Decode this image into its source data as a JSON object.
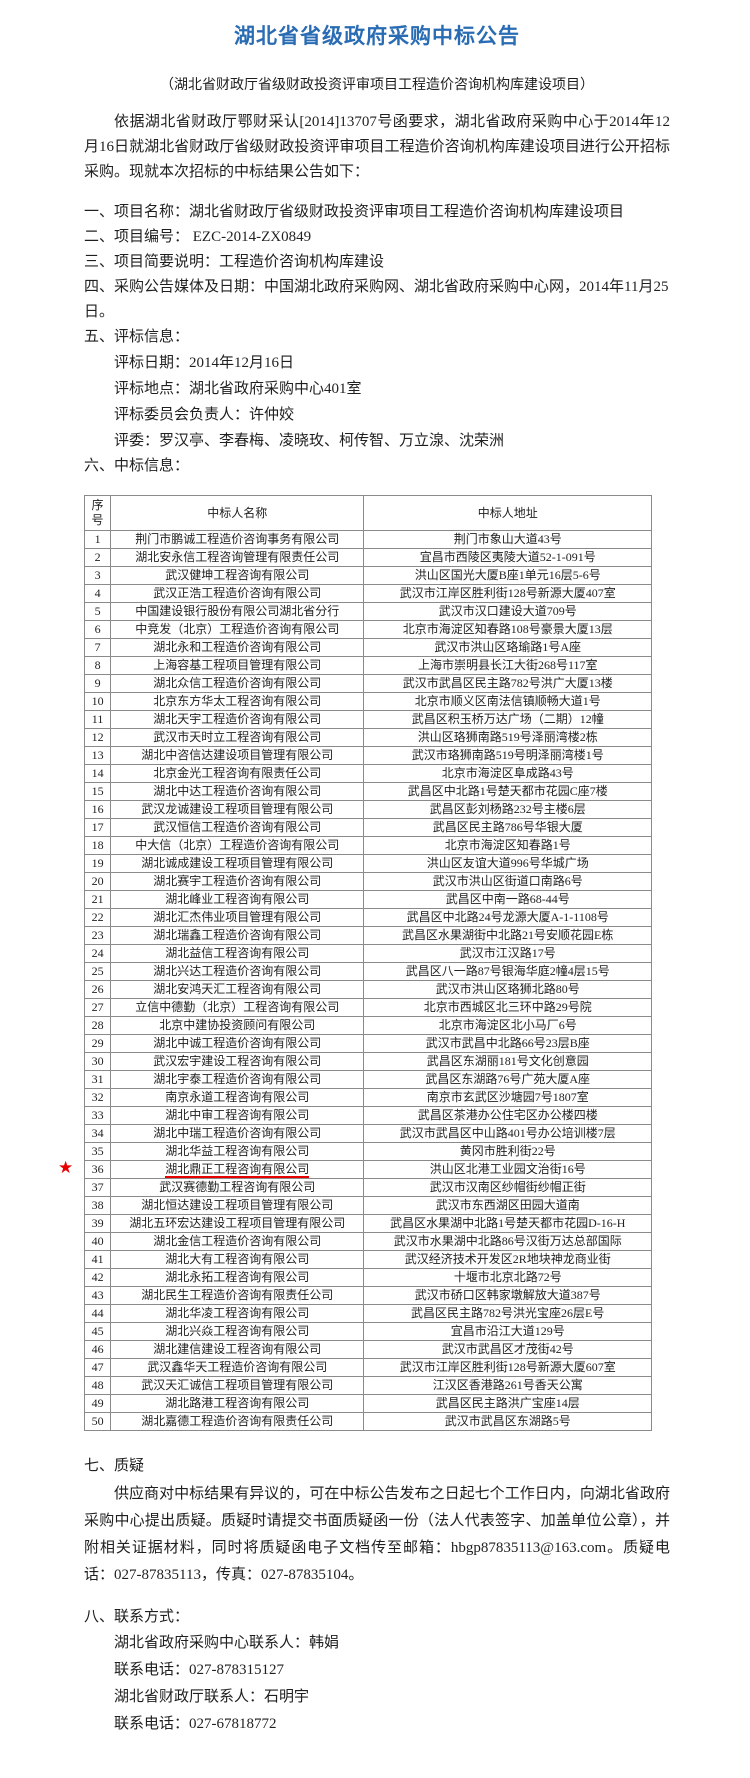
{
  "page": {
    "title": "湖北省省级政府采购中标公告",
    "subtitle": "（湖北省财政厅省级财政投资评审项目工程造价咨询机构库建设项目）",
    "intro": "依据湖北省财政厅鄂财采认[2014]13707号函要求，湖北省政府采购中心于2014年12月16日就湖北省财政厅省级财政投资评审项目工程造价咨询机构库建设项目进行公开招标采购。现就本次招标的中标结果公告如下：",
    "accent_color": "#2a6cb4",
    "highlight_color": "#e60000"
  },
  "items": {
    "item1": "一、项目名称：湖北省财政厅省级财政投资评审项目工程造价咨询机构库建设项目",
    "item2": "二、项目编号： EZC-2014-ZX0849",
    "item3": "三、项目简要说明：工程造价咨询机构库建设",
    "item4": "四、采购公告媒体及日期：中国湖北政府采购网、湖北省政府采购中心网，2014年11月25日。",
    "item5": "五、评标信息：",
    "eval_date": "评标日期：2014年12月16日",
    "eval_place": "评标地点：湖北省政府采购中心401室",
    "eval_leader": "评标委员会负责人：许仲姣",
    "eval_committee": "评委：罗汉亭、李春梅、凌晓玫、柯传智、万立湶、沈荣洲",
    "item6": "六、中标信息："
  },
  "table": {
    "headers": [
      "序号",
      "中标人名称",
      "中标人地址"
    ],
    "highlighted_row": 36,
    "star_icon": "★",
    "rows": [
      [
        "1",
        "荆门市鹏诚工程造价咨询事务有限公司",
        "荆门市象山大道43号"
      ],
      [
        "2",
        "湖北安永信工程咨询管理有限责任公司",
        "宜昌市西陵区夷陵大道52-1-091号"
      ],
      [
        "3",
        "武汉健坤工程咨询有限公司",
        "洪山区国光大厦B座1单元16层5-6号"
      ],
      [
        "4",
        "武汉正浩工程造价咨询有限公司",
        "武汉市江岸区胜利街128号新源大厦407室"
      ],
      [
        "5",
        "中国建设银行股份有限公司湖北省分行",
        "武汉市汉口建设大道709号"
      ],
      [
        "6",
        "中竞发（北京）工程造价咨询有限公司",
        "北京市海淀区知春路108号豪景大厦13层"
      ],
      [
        "7",
        "湖北永和工程造价咨询有限公司",
        "武汉市洪山区珞瑜路1号A座"
      ],
      [
        "8",
        "上海容基工程项目管理有限公司",
        "上海市崇明县长江大街268号117室"
      ],
      [
        "9",
        "湖北众信工程造价咨询有限公司",
        "武汉市武昌区民主路782号洪广大厦13楼"
      ],
      [
        "10",
        "北京东方华太工程咨询有限公司",
        "北京市顺义区南法信镇顺畅大道1号"
      ],
      [
        "11",
        "湖北天宇工程造价咨询有限公司",
        "武昌区积玉桥万达广场（二期）12幢"
      ],
      [
        "12",
        "武汉市天时立工程咨询有限公司",
        "洪山区珞狮南路519号泽丽湾楼2栋"
      ],
      [
        "13",
        "湖北中咨信达建设项目管理有限公司",
        "武汉市珞狮南路519号明泽丽湾楼1号"
      ],
      [
        "14",
        "北京金光工程咨询有限责任公司",
        "北京市海淀区阜成路43号"
      ],
      [
        "15",
        "湖北中达工程造价咨询有限公司",
        "武昌区中北路1号楚天都市花园C座7楼"
      ],
      [
        "16",
        "武汉龙诚建设工程项目管理有限公司",
        "武昌区彭刘杨路232号主楼6层"
      ],
      [
        "17",
        "武汉恒信工程造价咨询有限公司",
        "武昌区民主路786号华银大厦"
      ],
      [
        "18",
        "中大信（北京）工程造价咨询有限公司",
        "北京市海淀区知春路1号"
      ],
      [
        "19",
        "湖北诚成建设工程项目管理有限公司",
        "洪山区友谊大道996号华城广场"
      ],
      [
        "20",
        "湖北赛宇工程造价咨询有限公司",
        "武汉市洪山区街道口南路6号"
      ],
      [
        "21",
        "湖北峰业工程咨询有限公司",
        "武昌区中南一路68-44号"
      ],
      [
        "22",
        "湖北汇杰伟业项目管理有限公司",
        "武昌区中北路24号龙源大厦A-1-1108号"
      ],
      [
        "23",
        "湖北瑞鑫工程造价咨询有限公司",
        "武昌区水果湖街中北路21号安顺花园E栋"
      ],
      [
        "24",
        "湖北益信工程咨询有限公司",
        "武汉市江汉路17号"
      ],
      [
        "25",
        "湖北兴达工程造价咨询有限公司",
        "武昌区八一路87号银海华庭2幢4层15号"
      ],
      [
        "26",
        "湖北安鸿天汇工程咨询有限公司",
        "武汉市洪山区珞狮北路80号"
      ],
      [
        "27",
        "立信中德勤（北京）工程咨询有限公司",
        "北京市西城区北三环中路29号院"
      ],
      [
        "28",
        "北京中建协投资顾问有限公司",
        "北京市海淀区北小马厂6号"
      ],
      [
        "29",
        "湖北中诚工程造价咨询有限公司",
        "武汉市武昌中北路66号23层B座"
      ],
      [
        "30",
        "武汉宏宇建设工程咨询有限公司",
        "武昌区东湖丽181号文化创意园"
      ],
      [
        "31",
        "湖北宇泰工程造价咨询有限公司",
        "武昌区东湖路76号广苑大厦A座"
      ],
      [
        "32",
        "南京永道工程咨询有限公司",
        "南京市玄武区沙塘园7号1807室"
      ],
      [
        "33",
        "湖北中审工程咨询有限公司",
        "武昌区茶港办公住宅区办公楼四楼"
      ],
      [
        "34",
        "湖北中瑞工程造价咨询有限公司",
        "武汉市武昌区中山路401号办公培训楼7层"
      ],
      [
        "35",
        "湖北华益工程咨询有限公司",
        "黄冈市胜利街22号"
      ],
      [
        "36",
        "湖北鼎正工程咨询有限公司",
        "洪山区北港工业园文治街16号"
      ],
      [
        "37",
        "武汉赛德勤工程咨询有限公司",
        "武汉市汉南区纱帽街纱帽正街"
      ],
      [
        "38",
        "湖北恒达建设工程项目管理有限公司",
        "武汉市东西湖区田园大道南"
      ],
      [
        "39",
        "湖北五环宏达建设工程项目管理有限公司",
        "武昌区水果湖中北路1号楚天都市花园D-16-H"
      ],
      [
        "40",
        "湖北金信工程造价咨询有限公司",
        "武汉市水果湖中北路86号汉街万达总部国际"
      ],
      [
        "41",
        "湖北大有工程咨询有限公司",
        "武汉经济技术开发区2R地块神龙商业街"
      ],
      [
        "42",
        "湖北永拓工程咨询有限公司",
        "十堰市北京北路72号"
      ],
      [
        "43",
        "湖北民生工程造价咨询有限责任公司",
        "武汉市硚口区韩家墩解放大道387号"
      ],
      [
        "44",
        "湖北华凌工程咨询有限公司",
        "武昌区民主路782号洪光宝座26层E号"
      ],
      [
        "45",
        "湖北兴焱工程咨询有限公司",
        "宜昌市沿江大道129号"
      ],
      [
        "46",
        "湖北建信建设工程咨询有限公司",
        "武汉市武昌区才茂街42号"
      ],
      [
        "47",
        "武汉鑫华天工程造价咨询有限公司",
        "武汉市江岸区胜利街128号新源大厦607室"
      ],
      [
        "48",
        "武汉天汇诚信工程项目管理有限公司",
        "江汉区香港路261号香天公寓"
      ],
      [
        "49",
        "湖北路港工程咨询有限公司",
        "武昌区民主路洪广宝座14层"
      ],
      [
        "50",
        "湖北嘉德工程造价咨询有限责任公司",
        "武汉市武昌区东湖路5号"
      ]
    ]
  },
  "objection": {
    "heading": "七、质疑",
    "body": "供应商对中标结果有异议的，可在中标公告发布之日起七个工作日内，向湖北省政府采购中心提出质疑。质疑时请提交书面质疑函一份（法人代表签字、加盖单位公章），并附相关证据材料，同时将质疑函电子文档传至邮箱：hbgp87835113@163.com。质疑电话：027-87835113，传真：027-87835104。"
  },
  "contact": {
    "heading": "八、联系方式：",
    "line1": "湖北省政府采购中心联系人：韩娟",
    "line2": "联系电话：027-878315127",
    "line3": "湖北省财政厅联系人：石明宇",
    "line4": "联系电话：027-67818772"
  }
}
